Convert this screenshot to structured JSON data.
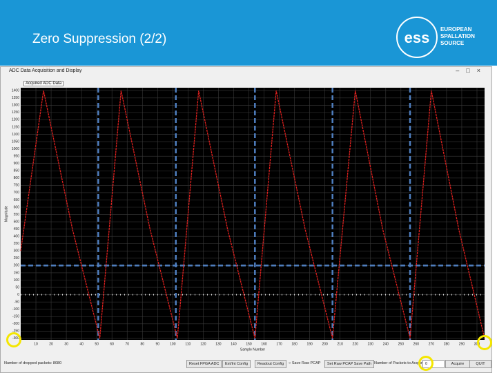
{
  "header": {
    "title": "Zero Suppression (2/2)",
    "logo_mark": "ess",
    "logo_lines": [
      "EUROPEAN",
      "SPALLATION",
      "SOURCE"
    ]
  },
  "window": {
    "title": "ADC Data Acquisition and Display"
  },
  "chart_data": {
    "type": "line",
    "title": "Acquired ADC Data",
    "x_label": "Sample Number",
    "y_label": "Magnitude",
    "x": [
      0,
      15,
      34,
      52,
      66,
      85,
      103,
      117,
      136,
      154,
      168,
      187,
      205,
      220,
      238,
      256,
      270,
      288,
      305
    ],
    "values": [
      300,
      1400,
      450,
      -300,
      1400,
      450,
      -300,
      1400,
      450,
      -300,
      1400,
      450,
      -300,
      1400,
      450,
      -300,
      1400,
      450,
      -300
    ],
    "color": "#e0201e",
    "xlim": [
      0,
      305
    ],
    "ylim": [
      -310,
      1420
    ],
    "xticks": [
      10,
      20,
      30,
      40,
      50,
      60,
      70,
      80,
      90,
      100,
      110,
      120,
      130,
      140,
      150,
      160,
      170,
      180,
      190,
      200,
      210,
      220,
      230,
      240,
      250,
      260,
      270,
      280,
      290,
      300
    ],
    "yticks": [
      -300,
      -250,
      -200,
      -150,
      -100,
      -50,
      0,
      50,
      100,
      150,
      200,
      250,
      300,
      350,
      400,
      450,
      500,
      550,
      600,
      650,
      700,
      750,
      800,
      850,
      900,
      950,
      1000,
      1050,
      1100,
      1150,
      1200,
      1250,
      1300,
      1350,
      1400
    ],
    "grid": true,
    "vlines": [
      51,
      102,
      154,
      205,
      256
    ],
    "hline": 200,
    "marker_color": "#4f7fc0"
  },
  "controls": {
    "status": "Number of dropped packets: 8080",
    "buttons": [
      "Reset FPGA ADC",
      "Ext/Int Config",
      "Readout Config"
    ],
    "radio_label": "Save Raw PCAP",
    "path_button": "Set Raw PCAP Save Path",
    "packets_label": "Number of Packets to Acquire",
    "packets_value": 0,
    "acquire": "Acquire",
    "quit": "QUIT"
  }
}
